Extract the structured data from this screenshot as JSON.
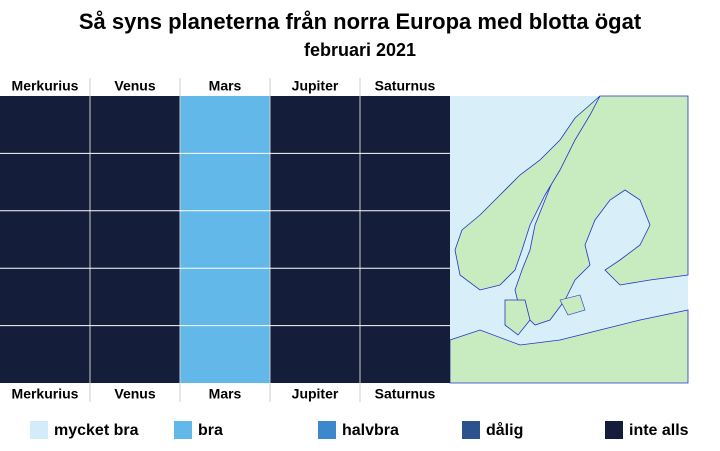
{
  "title": "Så syns planeterna från norra Europa med blotta ögat",
  "subtitle": "februari 2021",
  "planets": [
    "Merkurius",
    "Venus",
    "Mars",
    "Jupiter",
    "Saturnus"
  ],
  "visibility": [
    [
      4,
      4,
      4,
      4,
      4
    ],
    [
      4,
      4,
      4,
      4,
      4
    ],
    [
      1,
      1,
      1,
      1,
      1
    ],
    [
      4,
      4,
      4,
      4,
      4
    ],
    [
      4,
      4,
      4,
      4,
      4
    ]
  ],
  "legend": [
    {
      "label": "mycket bra",
      "color": "#d4ecfa"
    },
    {
      "label": "bra",
      "color": "#62b9e9"
    },
    {
      "label": "halvbra",
      "color": "#3d88cc"
    },
    {
      "label": "dålig",
      "color": "#2d528e"
    },
    {
      "label": "inte alls",
      "color": "#141d3a"
    }
  ]
}
